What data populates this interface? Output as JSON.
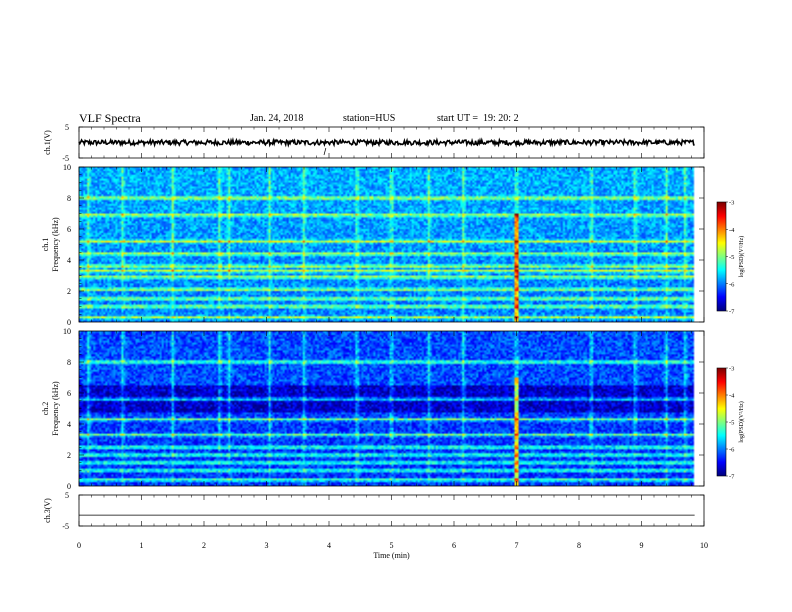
{
  "header": {
    "title": "VLF Spectra",
    "date": "Jan. 24, 2018",
    "station": "station=HUS",
    "start": "start UT =  19: 20: 2"
  },
  "chart_data": [
    {
      "type": "line",
      "panel": "ch1-waveform",
      "ylabel": "ch.1(V)",
      "yticks": [
        "5",
        "-5"
      ],
      "ylim": [
        -5,
        5
      ],
      "x_range_min": [
        0,
        9.85
      ],
      "description_values": {
        "baseline_V": 0.0,
        "noise_amplitude_V": 0.8
      }
    },
    {
      "type": "heatmap",
      "panel": "ch1-spectrogram",
      "ylabel": "ch.1\nFrequency (kHz)",
      "ylim": [
        0,
        10
      ],
      "yticks": [
        "0",
        "2",
        "4",
        "6",
        "8",
        "10"
      ],
      "xlim": [
        0,
        10
      ],
      "colorbar": {
        "label": "log(PSD)(V²/Hz)",
        "ticks": [
          "-3",
          "-4",
          "-5",
          "-6",
          "-7"
        ],
        "range": [
          -7,
          -3
        ]
      },
      "bright_bands_kHz": [
        0.3,
        1.0,
        1.5,
        2.1,
        2.9,
        3.3,
        3.6,
        4.4,
        5.2,
        6.9,
        8.0
      ],
      "events_min": [
        0.15,
        0.7,
        1.5,
        2.25,
        2.4,
        3.05,
        3.6,
        4.45,
        5.0,
        5.6,
        6.15,
        7.0,
        8.2,
        8.9,
        9.4,
        9.7
      ]
    },
    {
      "type": "heatmap",
      "panel": "ch2-spectrogram",
      "ylabel": "ch.2\nFrequency (kHz)",
      "ylim": [
        0,
        10
      ],
      "yticks": [
        "0",
        "2",
        "4",
        "6",
        "8",
        "10"
      ],
      "xlim": [
        0,
        10
      ],
      "colorbar": {
        "label": "log(PSD)(V²/Hz)",
        "ticks": [
          "-3",
          "-4",
          "-5",
          "-6",
          "-7"
        ],
        "range": [
          -7,
          -3
        ]
      },
      "bright_bands_kHz": [
        0.4,
        1.0,
        1.5,
        2.0,
        2.5,
        3.3,
        4.3,
        5.6,
        8.0
      ],
      "events_min": [
        0.15,
        0.7,
        1.5,
        2.25,
        2.4,
        3.05,
        3.6,
        4.45,
        5.0,
        5.6,
        6.15,
        7.0,
        8.2,
        8.9,
        9.4,
        9.7
      ]
    },
    {
      "type": "line",
      "panel": "ch3-waveform",
      "ylabel": "ch.3(V)",
      "yticks": [
        "5",
        "-5"
      ],
      "ylim": [
        -5,
        5
      ],
      "x_range_min": [
        0,
        9.85
      ],
      "description_values": {
        "baseline_V": -1.5,
        "noise_amplitude_V": 0.0
      },
      "xlabel": "Time (min)",
      "xticks": [
        "0",
        "1",
        "2",
        "3",
        "4",
        "5",
        "6",
        "7",
        "8",
        "9",
        "10"
      ],
      "xlim": [
        0,
        10
      ]
    }
  ],
  "colors": {
    "frame": "#000000",
    "background": "#ffffff"
  }
}
